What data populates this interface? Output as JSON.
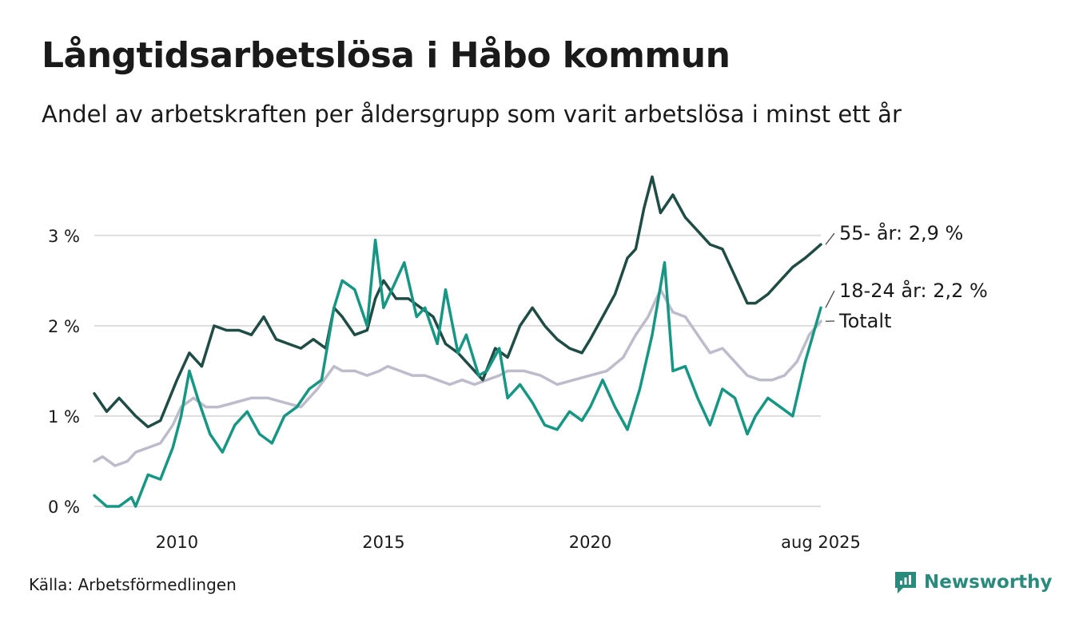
{
  "title": "Långtidsarbetslösa i Håbo kommun",
  "subtitle": "Andel av arbetskraften per åldersgrupp som varit arbetslösa i minst ett år",
  "source": "Källa: Arbetsförmedlingen",
  "brand": "Newsworthy",
  "colors": {
    "series_55": "#1f4d45",
    "series_18_24": "#179683",
    "series_total": "#bdbccb",
    "grid": "#dddddd",
    "brand": "#2a8a7c"
  },
  "chart_data": {
    "type": "line",
    "ylim": [
      0,
      3.75
    ],
    "yticks": [
      0,
      1,
      2,
      3
    ],
    "ytick_labels": [
      "0 %",
      "1 %",
      "2 %",
      "3 %"
    ],
    "xlim": [
      2008.0,
      2025.58
    ],
    "xticks": [
      2010,
      2015,
      2020,
      2025.58
    ],
    "xtick_labels": [
      "2010",
      "2015",
      "2020",
      "aug 2025"
    ],
    "grid": "horizontal",
    "series": [
      {
        "key": "s55",
        "end_label": "55- år: 2,9 %",
        "x": [
          2008.0,
          2008.3,
          2008.6,
          2009.0,
          2009.3,
          2009.6,
          2010.0,
          2010.3,
          2010.6,
          2010.9,
          2011.2,
          2011.5,
          2011.8,
          2012.1,
          2012.4,
          2012.7,
          2013.0,
          2013.3,
          2013.6,
          2013.8,
          2014.0,
          2014.3,
          2014.6,
          2014.8,
          2015.0,
          2015.3,
          2015.6,
          2015.9,
          2016.2,
          2016.5,
          2016.8,
          2017.1,
          2017.4,
          2017.7,
          2018.0,
          2018.3,
          2018.6,
          2018.9,
          2019.2,
          2019.5,
          2019.8,
          2020.0,
          2020.3,
          2020.6,
          2020.9,
          2021.1,
          2021.3,
          2021.5,
          2021.7,
          2022.0,
          2022.3,
          2022.6,
          2022.9,
          2023.2,
          2023.5,
          2023.8,
          2024.0,
          2024.3,
          2024.6,
          2024.9,
          2025.2,
          2025.58
        ],
        "y": [
          1.25,
          1.05,
          1.2,
          1.0,
          0.88,
          0.95,
          1.4,
          1.7,
          1.55,
          2.0,
          1.95,
          1.95,
          1.9,
          2.1,
          1.85,
          1.8,
          1.75,
          1.85,
          1.75,
          2.2,
          2.1,
          1.9,
          1.95,
          2.3,
          2.5,
          2.3,
          2.3,
          2.2,
          2.1,
          1.8,
          1.7,
          1.55,
          1.4,
          1.75,
          1.65,
          2.0,
          2.2,
          2.0,
          1.85,
          1.75,
          1.7,
          1.85,
          2.1,
          2.35,
          2.75,
          2.85,
          3.3,
          3.65,
          3.25,
          3.45,
          3.2,
          3.05,
          2.9,
          2.85,
          2.55,
          2.25,
          2.25,
          2.35,
          2.5,
          2.65,
          2.75,
          2.9
        ]
      },
      {
        "key": "s1824",
        "end_label": "18-24 år: 2,2 %",
        "x": [
          2008.0,
          2008.3,
          2008.6,
          2008.9,
          2009.0,
          2009.3,
          2009.6,
          2009.9,
          2010.1,
          2010.3,
          2010.5,
          2010.8,
          2011.1,
          2011.4,
          2011.7,
          2012.0,
          2012.3,
          2012.6,
          2012.9,
          2013.2,
          2013.5,
          2013.8,
          2014.0,
          2014.3,
          2014.6,
          2014.8,
          2015.0,
          2015.3,
          2015.5,
          2015.8,
          2016.0,
          2016.3,
          2016.5,
          2016.8,
          2017.0,
          2017.3,
          2017.5,
          2017.8,
          2018.0,
          2018.3,
          2018.6,
          2018.9,
          2019.2,
          2019.5,
          2019.8,
          2020.0,
          2020.3,
          2020.6,
          2020.9,
          2021.2,
          2021.5,
          2021.8,
          2022.0,
          2022.3,
          2022.6,
          2022.9,
          2023.2,
          2023.5,
          2023.8,
          2024.0,
          2024.3,
          2024.6,
          2024.9,
          2025.2,
          2025.58
        ],
        "y": [
          0.12,
          0.0,
          0.0,
          0.1,
          0.0,
          0.35,
          0.3,
          0.65,
          1.0,
          1.5,
          1.2,
          0.8,
          0.6,
          0.9,
          1.05,
          0.8,
          0.7,
          1.0,
          1.1,
          1.3,
          1.4,
          2.2,
          2.5,
          2.4,
          2.0,
          2.95,
          2.2,
          2.5,
          2.7,
          2.1,
          2.2,
          1.8,
          2.4,
          1.7,
          1.9,
          1.45,
          1.5,
          1.75,
          1.2,
          1.35,
          1.15,
          0.9,
          0.85,
          1.05,
          0.95,
          1.1,
          1.4,
          1.1,
          0.85,
          1.3,
          1.9,
          2.7,
          1.5,
          1.55,
          1.2,
          0.9,
          1.3,
          1.2,
          0.8,
          1.0,
          1.2,
          1.1,
          1.0,
          1.6,
          2.2
        ]
      },
      {
        "key": "total",
        "end_label": "Totalt",
        "x": [
          2008.0,
          2008.2,
          2008.5,
          2008.8,
          2009.0,
          2009.3,
          2009.6,
          2009.9,
          2010.1,
          2010.4,
          2010.7,
          2011.0,
          2011.4,
          2011.8,
          2012.2,
          2012.6,
          2013.0,
          2013.4,
          2013.8,
          2014.0,
          2014.3,
          2014.6,
          2014.9,
          2015.1,
          2015.4,
          2015.7,
          2016.0,
          2016.3,
          2016.6,
          2016.9,
          2017.2,
          2017.5,
          2017.8,
          2018.0,
          2018.4,
          2018.8,
          2019.2,
          2019.6,
          2020.0,
          2020.4,
          2020.8,
          2021.1,
          2021.4,
          2021.7,
          2022.0,
          2022.3,
          2022.6,
          2022.9,
          2023.2,
          2023.5,
          2023.8,
          2024.1,
          2024.4,
          2024.7,
          2025.0,
          2025.3,
          2025.58
        ],
        "y": [
          0.5,
          0.55,
          0.45,
          0.5,
          0.6,
          0.65,
          0.7,
          0.9,
          1.1,
          1.2,
          1.1,
          1.1,
          1.15,
          1.2,
          1.2,
          1.15,
          1.1,
          1.3,
          1.55,
          1.5,
          1.5,
          1.45,
          1.5,
          1.55,
          1.5,
          1.45,
          1.45,
          1.4,
          1.35,
          1.4,
          1.35,
          1.4,
          1.45,
          1.5,
          1.5,
          1.45,
          1.35,
          1.4,
          1.45,
          1.5,
          1.65,
          1.9,
          2.1,
          2.4,
          2.15,
          2.1,
          1.9,
          1.7,
          1.75,
          1.6,
          1.45,
          1.4,
          1.4,
          1.45,
          1.6,
          1.9,
          2.05
        ]
      }
    ]
  }
}
